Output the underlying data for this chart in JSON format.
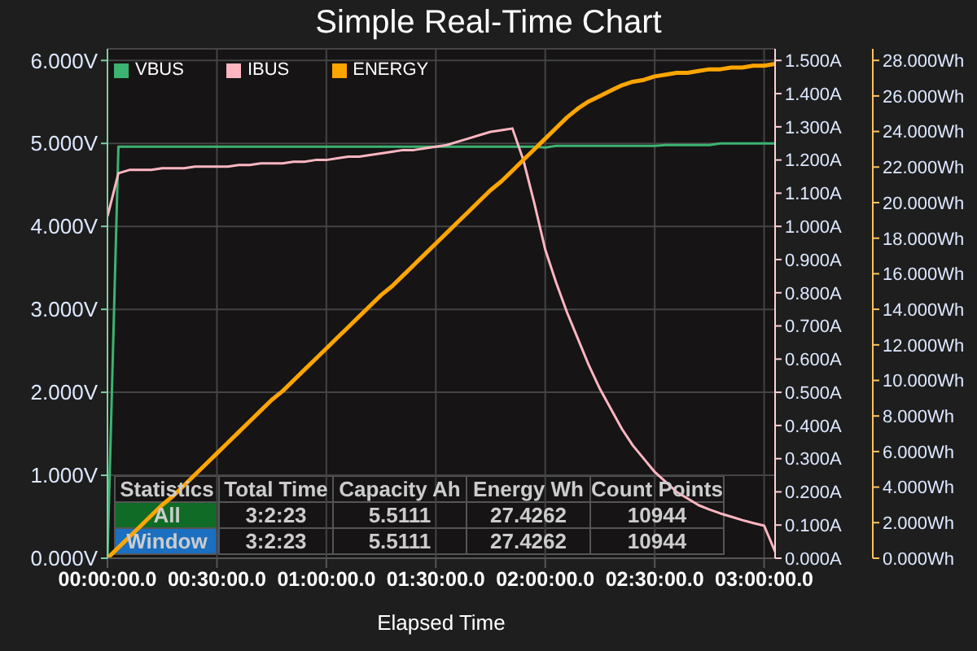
{
  "chart_data": {
    "type": "line",
    "title": "Simple Real-Time Chart",
    "xlabel": "Elapsed Time",
    "categories": [
      "00:00:00.0",
      null,
      null,
      null,
      null,
      null,
      null,
      null,
      null,
      null,
      "00:30:00.0",
      null,
      null,
      null,
      null,
      null,
      null,
      null,
      null,
      null,
      "01:00:00.0",
      null,
      null,
      null,
      null,
      null,
      null,
      null,
      null,
      null,
      "01:30:00.0",
      null,
      null,
      null,
      null,
      null,
      null,
      null,
      null,
      null,
      "02:00:00.0",
      null,
      null,
      null,
      null,
      null,
      null,
      null,
      null,
      null,
      "02:30:00.0",
      null,
      null,
      null,
      null,
      null,
      null,
      null,
      null,
      null,
      "03:00:00.0",
      null
    ],
    "ylim": [
      0,
      6.14
    ],
    "yticks": [
      {
        "value": 0,
        "label": "0.000V"
      },
      {
        "value": 1,
        "label": "1.000V"
      },
      {
        "value": 2,
        "label": "2.000V"
      },
      {
        "value": 3,
        "label": "3.000V"
      },
      {
        "value": 4,
        "label": "4.000V"
      },
      {
        "value": 5,
        "label": "5.000V"
      },
      {
        "value": 6,
        "label": "6.000V"
      }
    ],
    "y2lim": [
      0,
      1.535
    ],
    "y2ticks": [
      {
        "value": 0,
        "label": "0.000A"
      },
      {
        "value": 0.1,
        "label": "0.100A"
      },
      {
        "value": 0.2,
        "label": "0.200A"
      },
      {
        "value": 0.3,
        "label": "0.300A"
      },
      {
        "value": 0.4,
        "label": "0.400A"
      },
      {
        "value": 0.5,
        "label": "0.500A"
      },
      {
        "value": 0.6,
        "label": "0.600A"
      },
      {
        "value": 0.7,
        "label": "0.700A"
      },
      {
        "value": 0.8,
        "label": "0.800A"
      },
      {
        "value": 0.9,
        "label": "0.900A"
      },
      {
        "value": 1,
        "label": "1.000A"
      },
      {
        "value": 1.1,
        "label": "1.100A"
      },
      {
        "value": 1.2,
        "label": "1.200A"
      },
      {
        "value": 1.3,
        "label": "1.300A"
      },
      {
        "value": 1.4,
        "label": "1.400A"
      },
      {
        "value": 1.5,
        "label": "1.500A"
      }
    ],
    "y3lim": [
      0,
      28.65
    ],
    "y3ticks": [
      {
        "value": 0,
        "label": "0.000Wh"
      },
      {
        "value": 2,
        "label": "2.000Wh"
      },
      {
        "value": 4,
        "label": "4.000Wh"
      },
      {
        "value": 6,
        "label": "6.000Wh"
      },
      {
        "value": 8,
        "label": "8.000Wh"
      },
      {
        "value": 10,
        "label": "10.000Wh"
      },
      {
        "value": 12,
        "label": "12.000Wh"
      },
      {
        "value": 14,
        "label": "14.000Wh"
      },
      {
        "value": 16,
        "label": "16.000Wh"
      },
      {
        "value": 18,
        "label": "18.000Wh"
      },
      {
        "value": 20,
        "label": "20.000Wh"
      },
      {
        "value": 22,
        "label": "22.000Wh"
      },
      {
        "value": 24,
        "label": "24.000Wh"
      },
      {
        "value": 26,
        "label": "26.000Wh"
      },
      {
        "value": 28,
        "label": "28.000Wh"
      }
    ],
    "grid": true,
    "legend": "top left",
    "marker": "none",
    "line_style": "solid",
    "series": [
      {
        "name": "VBUS",
        "color": "#3cb371",
        "axis": "y",
        "values": [
          0,
          4.96,
          4.96,
          4.96,
          4.96,
          4.96,
          4.96,
          4.96,
          4.96,
          4.96,
          4.96,
          4.96,
          4.96,
          4.96,
          4.96,
          4.96,
          4.96,
          4.96,
          4.96,
          4.96,
          4.96,
          4.96,
          4.96,
          4.96,
          4.96,
          4.96,
          4.96,
          4.96,
          4.96,
          4.96,
          4.96,
          4.96,
          4.96,
          4.96,
          4.96,
          4.96,
          4.96,
          4.96,
          4.96,
          4.96,
          4.95,
          4.97,
          4.97,
          4.97,
          4.97,
          4.97,
          4.97,
          4.97,
          4.97,
          4.97,
          4.97,
          4.98,
          4.98,
          4.98,
          4.98,
          4.98,
          5.0,
          5.0,
          5.0,
          5.0,
          5.0,
          5.0
        ]
      },
      {
        "name": "IBUS",
        "color": "#ffb6c1",
        "axis": "y2",
        "values": [
          1.03,
          1.16,
          1.17,
          1.17,
          1.17,
          1.175,
          1.175,
          1.175,
          1.18,
          1.18,
          1.18,
          1.18,
          1.185,
          1.185,
          1.19,
          1.19,
          1.19,
          1.195,
          1.195,
          1.2,
          1.2,
          1.205,
          1.21,
          1.21,
          1.215,
          1.22,
          1.225,
          1.23,
          1.23,
          1.235,
          1.24,
          1.245,
          1.255,
          1.265,
          1.275,
          1.285,
          1.29,
          1.295,
          1.2,
          1.07,
          0.93,
          0.83,
          0.74,
          0.66,
          0.58,
          0.51,
          0.45,
          0.39,
          0.34,
          0.3,
          0.26,
          0.23,
          0.2,
          0.18,
          0.16,
          0.147,
          0.135,
          0.125,
          0.115,
          0.106,
          0.098,
          0.02
        ]
      },
      {
        "name": "ENERGY",
        "color": "#ffa500",
        "axis": "y3",
        "values": [
          0,
          0.6,
          1.2,
          1.8,
          2.4,
          3.0,
          3.5,
          4.1,
          4.7,
          5.3,
          5.9,
          6.5,
          7.1,
          7.7,
          8.3,
          8.9,
          9.4,
          10.0,
          10.6,
          11.2,
          11.8,
          12.4,
          13.0,
          13.6,
          14.2,
          14.8,
          15.3,
          15.9,
          16.5,
          17.1,
          17.7,
          18.3,
          18.9,
          19.5,
          20.1,
          20.7,
          21.2,
          21.8,
          22.4,
          23.0,
          23.6,
          24.2,
          24.8,
          25.3,
          25.7,
          26.0,
          26.3,
          26.6,
          26.8,
          26.9,
          27.1,
          27.2,
          27.3,
          27.3,
          27.4,
          27.5,
          27.5,
          27.6,
          27.6,
          27.7,
          27.7,
          27.8
        ]
      }
    ],
    "annotations": [
      "Statistics",
      "Total Time",
      "Capacity Ah",
      "Energy Wh",
      "Count Points",
      "All",
      "3:2:23",
      "5.5111",
      "27.4262",
      "10944",
      "Window",
      "3:2:23",
      "5.5111",
      "27.4262",
      "10944"
    ]
  }
}
